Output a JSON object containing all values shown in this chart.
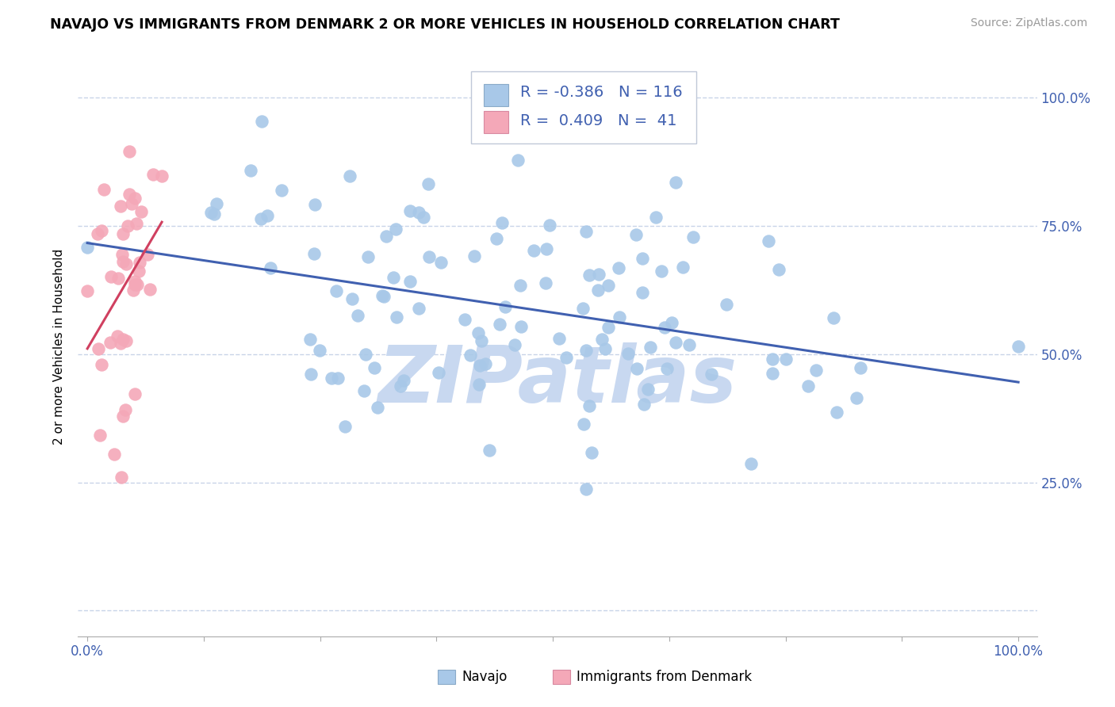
{
  "title": "NAVAJO VS IMMIGRANTS FROM DENMARK 2 OR MORE VEHICLES IN HOUSEHOLD CORRELATION CHART",
  "source": "Source: ZipAtlas.com",
  "ylabel": "2 or more Vehicles in Household",
  "navajo_R": -0.386,
  "navajo_N": 116,
  "denmark_R": 0.409,
  "denmark_N": 41,
  "navajo_color": "#a8c8e8",
  "denmark_color": "#f4a8b8",
  "navajo_line_color": "#4060b0",
  "denmark_line_color": "#d04060",
  "background_color": "#ffffff",
  "grid_color": "#c8d4e8",
  "watermark": "ZIPatlas",
  "watermark_color": "#c8d8f0",
  "title_fontsize": 12.5,
  "source_fontsize": 10,
  "axis_label_fontsize": 11,
  "tick_fontsize": 12,
  "legend_fontsize": 14,
  "y_ticks": [
    0.0,
    0.25,
    0.5,
    0.75,
    1.0
  ],
  "y_tick_labels": [
    "",
    "25.0%",
    "50.0%",
    "75.0%",
    "100.0%"
  ],
  "right_tick_color": "#4060b0"
}
